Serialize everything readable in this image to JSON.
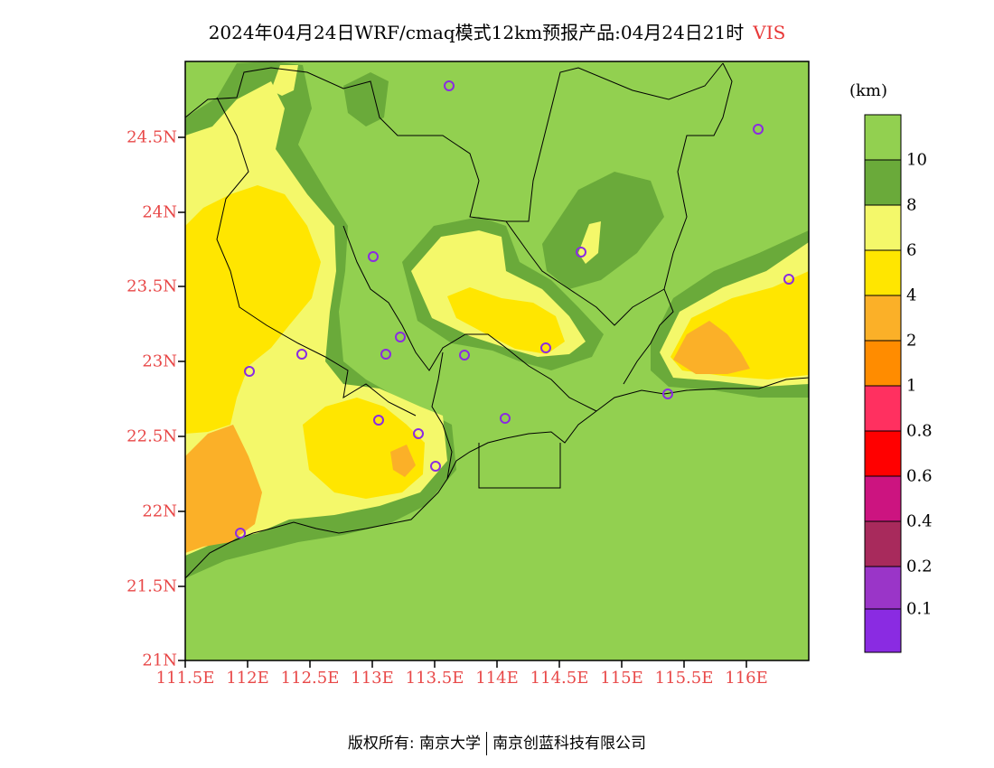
{
  "title": {
    "text": "2024年04月24日WRF/cmaq模式12km预报产品:04月24日21时",
    "variable": "VIS"
  },
  "map": {
    "lat_ticks": [
      "24.5N",
      "24N",
      "23.5N",
      "23N",
      "22.5N",
      "22N",
      "21.5N",
      "21N"
    ],
    "lon_ticks": [
      "111.5E",
      "112E",
      "112.5E",
      "113E",
      "113.5E",
      "114E",
      "114.5E",
      "115E",
      "115.5E",
      "116E"
    ],
    "background_color": "#92d050"
  },
  "colorbar": {
    "unit": "(km)",
    "levels": [
      {
        "label": "",
        "color": "#92d050"
      },
      {
        "label": "10",
        "color": "#6aaa3a"
      },
      {
        "label": "8",
        "color": "#f4f86a"
      },
      {
        "label": "6",
        "color": "#ffe600"
      },
      {
        "label": "4",
        "color": "#fbb028"
      },
      {
        "label": "2",
        "color": "#ff8c00"
      },
      {
        "label": "1",
        "color": "#ff3060"
      },
      {
        "label": "0.8",
        "color": "#ff0000"
      },
      {
        "label": "0.6",
        "color": "#cc1480"
      },
      {
        "label": "0.4",
        "color": "#a82a5c"
      },
      {
        "label": "0.2",
        "color": "#9a35c8"
      },
      {
        "label": "0.1",
        "color": "#8a2be2"
      }
    ]
  },
  "footer": {
    "left": "版权所有: 南京大学",
    "right": "南京创蓝科技有限公司"
  }
}
